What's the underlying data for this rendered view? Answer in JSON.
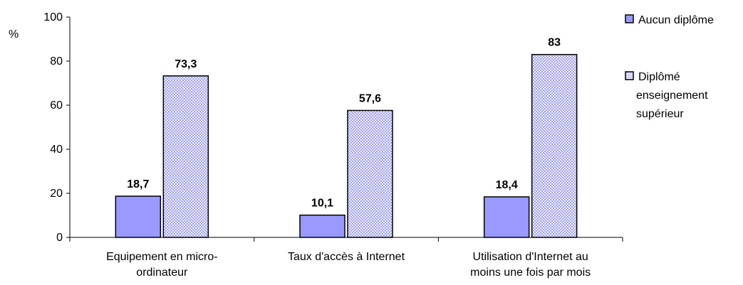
{
  "chart_data": {
    "type": "bar",
    "ylabel": "%",
    "ylim": [
      0,
      100
    ],
    "yticks": [
      "0",
      "20",
      "40",
      "60",
      "80",
      "100"
    ],
    "grid": false,
    "legend_position": "right",
    "categories": [
      [
        "Equipement en micro-",
        "ordinateur"
      ],
      [
        "Taux d'accès à Internet"
      ],
      [
        "Utilisation d'Internet au",
        "moins une fois par mois"
      ]
    ],
    "series": [
      {
        "name": "Aucun diplôme",
        "legend_lines": [
          "Aucun diplôme"
        ],
        "values": [
          18.7,
          10.1,
          18.4
        ],
        "labels": [
          "18,7",
          "10,1",
          "18,4"
        ],
        "color": "#9999ff",
        "pattern": "solid"
      },
      {
        "name": "Diplômé enseignement supérieur",
        "legend_lines": [
          "Diplômé",
          "enseignement",
          "supérieur"
        ],
        "values": [
          73.3,
          57.6,
          83
        ],
        "labels": [
          "73,3",
          "57,6",
          "83"
        ],
        "color": "#ccccff",
        "pattern": "dotted"
      }
    ]
  }
}
